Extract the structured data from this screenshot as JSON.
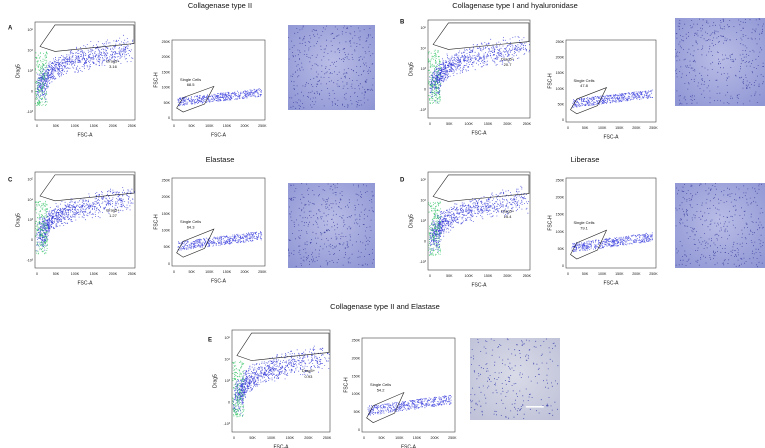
{
  "fsc_ticks": [
    "0",
    "50K",
    "100K",
    "150K",
    "200K",
    "250K"
  ],
  "drag5_ticks": [
    "-10³",
    "0",
    "10³",
    "10⁴",
    "10⁵"
  ],
  "panels": [
    {
      "letter": "A",
      "title": "Collagenase type II",
      "dot_plot": {
        "y_label": "Drag5",
        "x_label": "FSC-A",
        "gate_name": "Drag5+",
        "gate_value": "3.16"
      },
      "singlet_plot": {
        "y_label": "FSC-H",
        "x_label": "FSC-A",
        "gate_name": "Single Cells",
        "gate_value": "68.5"
      }
    },
    {
      "letter": "B",
      "title": "Collagenase type I and hyaluronidase",
      "dot_plot": {
        "y_label": "Drag5",
        "x_label": "FSC-A",
        "gate_name": "Drag5+",
        "gate_value": "20.7"
      },
      "singlet_plot": {
        "y_label": "FSC-H",
        "x_label": "FSC-A",
        "gate_name": "Single Cells",
        "gate_value": "47.8"
      }
    },
    {
      "letter": "C",
      "title": "Elastase",
      "dot_plot": {
        "y_label": "Drag5",
        "x_label": "FSC-A",
        "gate_name": "Drag5+",
        "gate_value": "1.27"
      },
      "singlet_plot": {
        "y_label": "FSC-H",
        "x_label": "FSC-A",
        "gate_name": "Single Cells",
        "gate_value": "64.3"
      }
    },
    {
      "letter": "D",
      "title": "Liberase",
      "dot_plot": {
        "y_label": "Drag5",
        "x_label": "FSC-A",
        "gate_name": "Drag5+",
        "gate_value": "15.4"
      },
      "singlet_plot": {
        "y_label": "FSC-H",
        "x_label": "FSC-A",
        "gate_name": "Single Cells",
        "gate_value": "79.1"
      }
    },
    {
      "letter": "E",
      "title": "Collagenase type II and Elastase",
      "dot_plot": {
        "y_label": "Drag5",
        "x_label": "FSC-A",
        "gate_name": "Drag5+",
        "gate_value": "0.93"
      },
      "singlet_plot": {
        "y_label": "FSC-H",
        "x_label": "FSC-A",
        "gate_name": "Single Cells",
        "gate_value": "54.2"
      }
    }
  ]
}
